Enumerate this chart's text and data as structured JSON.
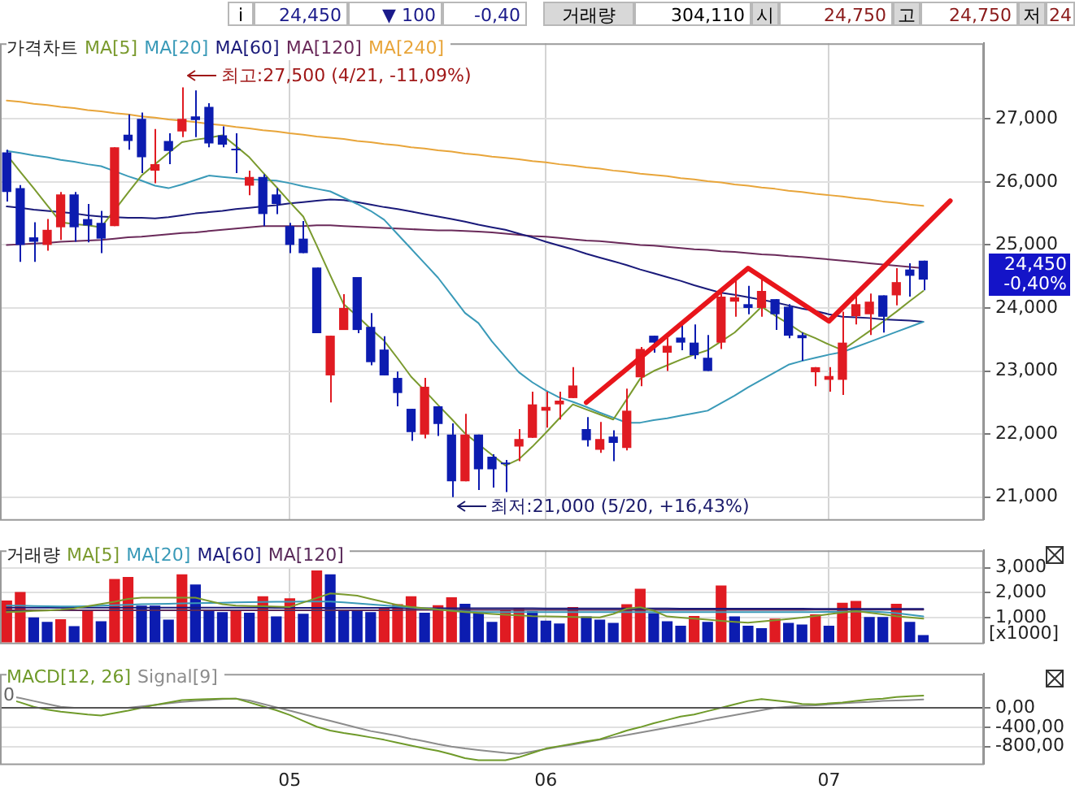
{
  "chart_data": [
    {
      "type": "candlestick",
      "title": "가격차트",
      "categories": [
        null,
        null,
        null,
        null,
        null,
        null,
        null,
        null,
        null,
        null,
        null,
        null,
        null,
        null,
        null,
        null,
        null,
        null,
        null,
        null,
        null,
        "05",
        null,
        null,
        null,
        null,
        null,
        null,
        null,
        null,
        null,
        null,
        null,
        null,
        null,
        null,
        null,
        null,
        null,
        null,
        "06",
        null,
        null,
        null,
        null,
        null,
        null,
        null,
        null,
        null,
        null,
        null,
        null,
        null,
        null,
        null,
        null,
        null,
        null,
        null,
        null,
        "07",
        null,
        null,
        null,
        null,
        null,
        null,
        null,
        null,
        null,
        null,
        null
      ],
      "ohlc": [
        [
          26470,
          26510,
          25690,
          25840
        ],
        [
          25900,
          25950,
          24730,
          25000
        ],
        [
          25120,
          25360,
          24730,
          25050
        ],
        [
          25000,
          25410,
          24910,
          25240
        ],
        [
          25280,
          25840,
          25080,
          25800
        ],
        [
          25800,
          25840,
          25050,
          25280
        ],
        [
          25410,
          25650,
          25040,
          25310
        ],
        [
          25350,
          25540,
          24870,
          25100
        ],
        [
          25300,
          26550,
          25300,
          26550
        ],
        [
          26750,
          27070,
          26510,
          26650
        ],
        [
          27000,
          27100,
          26140,
          26390
        ],
        [
          26180,
          26840,
          25980,
          26280
        ],
        [
          26650,
          26770,
          26280,
          26490
        ],
        [
          26800,
          27500,
          26710,
          27000
        ],
        [
          27040,
          27450,
          26710,
          26980
        ],
        [
          27190,
          27250,
          26550,
          26610
        ],
        [
          26740,
          26880,
          26550,
          26590
        ],
        [
          26520,
          26770,
          26140,
          26500
        ],
        [
          25940,
          26180,
          25790,
          26080
        ],
        [
          26080,
          26120,
          25300,
          25490
        ],
        [
          25800,
          25900,
          25490,
          25650
        ],
        [
          25300,
          25350,
          24870,
          25000
        ],
        [
          25100,
          25380,
          24870,
          24870
        ],
        [
          24640,
          24640,
          23600,
          23600
        ],
        [
          22930,
          23560,
          22500,
          23560
        ],
        [
          23650,
          24220,
          23650,
          24000
        ],
        [
          24490,
          24490,
          23600,
          23650
        ],
        [
          23700,
          23920,
          23090,
          23140
        ],
        [
          23340,
          23550,
          22930,
          22930
        ],
        [
          22890,
          22990,
          22440,
          22650
        ],
        [
          22400,
          22400,
          21890,
          22030
        ],
        [
          21990,
          22890,
          21930,
          22750
        ],
        [
          22440,
          22440,
          21970,
          22160
        ],
        [
          21990,
          22170,
          21000,
          21250
        ],
        [
          21250,
          22320,
          21250,
          21990
        ],
        [
          21990,
          21990,
          21110,
          21440
        ],
        [
          21640,
          21680,
          21150,
          21440
        ],
        [
          21540,
          21590,
          21080,
          21520
        ],
        [
          21800,
          22080,
          21570,
          21920
        ],
        [
          21940,
          22670,
          21940,
          22470
        ],
        [
          22370,
          22670,
          22100,
          22430
        ],
        [
          22470,
          22670,
          22230,
          22530
        ],
        [
          22570,
          23060,
          22570,
          22770
        ],
        [
          22080,
          22270,
          21800,
          21900
        ],
        [
          21750,
          22190,
          21700,
          21920
        ],
        [
          21960,
          22060,
          21570,
          21860
        ],
        [
          21780,
          22720,
          21740,
          22370
        ],
        [
          22900,
          23380,
          22760,
          23350
        ],
        [
          23560,
          23560,
          23290,
          23450
        ],
        [
          23290,
          23530,
          23000,
          23400
        ],
        [
          23530,
          23780,
          23330,
          23450
        ],
        [
          23450,
          23740,
          23190,
          23250
        ],
        [
          23210,
          23570,
          23000,
          23000
        ],
        [
          23450,
          24270,
          23350,
          24180
        ],
        [
          24100,
          24510,
          23860,
          24170
        ],
        [
          24060,
          24350,
          23900,
          24000
        ],
        [
          24000,
          24510,
          23860,
          24270
        ],
        [
          24140,
          24140,
          23650,
          23900
        ],
        [
          24020,
          24060,
          23520,
          23560
        ],
        [
          23570,
          23610,
          23160,
          23520
        ],
        [
          22980,
          23060,
          22760,
          23060
        ],
        [
          22860,
          23060,
          22670,
          22920
        ],
        [
          22860,
          23940,
          22620,
          23450
        ],
        [
          23870,
          24230,
          23740,
          24060
        ],
        [
          23900,
          24230,
          23570,
          24100
        ],
        [
          24200,
          24200,
          23610,
          23860
        ],
        [
          24200,
          24630,
          24040,
          24410
        ],
        [
          24610,
          24710,
          24180,
          24510
        ],
        [
          24750,
          24750,
          24280,
          24450
        ],
        null,
        null,
        null,
        null
      ],
      "colors": [
        "#0c1cb0",
        "#0c1cb0",
        "#0c1cb0",
        "#e01b22",
        "#e01b22",
        "#0c1cb0",
        "#0c1cb0",
        "#0c1cb0",
        "#e01b22",
        "#0c1cb0",
        "#0c1cb0",
        "#e01b22",
        "#0c1cb0",
        "#e01b22",
        "#0c1cb0",
        "#0c1cb0",
        "#0c1cb0",
        "#0c1cb0",
        "#e01b22",
        "#0c1cb0",
        "#0c1cb0",
        "#0c1cb0",
        "#0c1cb0",
        "#0c1cb0",
        "#e01b22",
        "#e01b22",
        "#0c1cb0",
        "#0c1cb0",
        "#0c1cb0",
        "#0c1cb0",
        "#0c1cb0",
        "#e01b22",
        "#0c1cb0",
        "#0c1cb0",
        "#e01b22",
        "#0c1cb0",
        "#0c1cb0",
        "#0c1cb0",
        "#e01b22",
        "#e01b22",
        "#e01b22",
        "#e01b22",
        "#e01b22",
        "#0c1cb0",
        "#e01b22",
        "#0c1cb0",
        "#e01b22",
        "#e01b22",
        "#0c1cb0",
        "#e01b22",
        "#0c1cb0",
        "#0c1cb0",
        "#0c1cb0",
        "#e01b22",
        "#e01b22",
        "#0c1cb0",
        "#e01b22",
        "#0c1cb0",
        "#0c1cb0",
        "#0c1cb0",
        "#e01b22",
        "#e01b22",
        "#e01b22",
        "#e01b22",
        "#e01b22",
        "#0c1cb0",
        "#e01b22",
        "#0c1cb0",
        "#0c1cb0",
        null,
        null,
        null,
        null
      ],
      "series": [
        {
          "type": "line",
          "name": "MA[5]",
          "color": "#7a9a2e",
          "values": [
            26430,
            26160,
            25900,
            25630,
            25360,
            25330,
            25310,
            25280,
            25550,
            25830,
            26100,
            26280,
            26460,
            26630,
            26670,
            26700,
            26740,
            26570,
            26390,
            26150,
            25920,
            25680,
            25450,
            24990,
            24520,
            24060,
            23870,
            23670,
            23480,
            23200,
            22910,
            22690,
            22460,
            22240,
            22010,
            21840,
            21670,
            21500,
            21600,
            21800,
            22020,
            22250,
            22470,
            22390,
            22310,
            22230,
            22550,
            22880,
            23000,
            23090,
            23180,
            23260,
            23330,
            23470,
            23610,
            23810,
            24020,
            23880,
            23750,
            23610,
            23520,
            23420,
            23330,
            23480,
            23630,
            23780,
            23940,
            24110,
            24270,
            null,
            null,
            null,
            null
          ]
        },
        {
          "type": "line",
          "name": "MA[20]",
          "color": "#3a9ab8",
          "values": [
            26490,
            26460,
            26420,
            26390,
            26350,
            26320,
            26280,
            26250,
            26170,
            26090,
            26020,
            25940,
            25900,
            25960,
            26030,
            26100,
            26080,
            26060,
            26040,
            26030,
            26020,
            25980,
            25930,
            25890,
            25850,
            25750,
            25650,
            25540,
            25400,
            25170,
            24940,
            24710,
            24480,
            24200,
            23920,
            23760,
            23470,
            23220,
            22980,
            22820,
            22690,
            22580,
            22510,
            22430,
            22340,
            22260,
            22180,
            22180,
            22220,
            22250,
            22290,
            22330,
            22370,
            22490,
            22610,
            22740,
            22860,
            22980,
            23100,
            23160,
            23210,
            23260,
            23300,
            23380,
            23460,
            23540,
            23620,
            23700,
            23780,
            null,
            null,
            null,
            null
          ]
        },
        {
          "type": "line",
          "name": "MA[60]",
          "color": "#1a1a7a",
          "values": [
            25610,
            25590,
            25560,
            25540,
            25520,
            25500,
            25470,
            25450,
            25440,
            25430,
            25430,
            25420,
            25440,
            25470,
            25500,
            25520,
            25540,
            25570,
            25590,
            25610,
            25630,
            25660,
            25680,
            25700,
            25720,
            25710,
            25680,
            25640,
            25600,
            25570,
            25530,
            25490,
            25450,
            25410,
            25370,
            25320,
            25280,
            25240,
            25180,
            25120,
            25050,
            24990,
            24930,
            24860,
            24800,
            24740,
            24680,
            24610,
            24550,
            24490,
            24430,
            24360,
            24300,
            24240,
            24210,
            24170,
            24130,
            24090,
            24040,
            23990,
            23950,
            23900,
            23860,
            23850,
            23840,
            23820,
            23810,
            23800,
            23780,
            null,
            null,
            null,
            null
          ]
        },
        {
          "type": "line",
          "name": "MA[120]",
          "color": "#6a2a5a",
          "values": [
            25000,
            25010,
            25020,
            25030,
            25050,
            25060,
            25070,
            25080,
            25100,
            25120,
            25130,
            25150,
            25170,
            25190,
            25200,
            25220,
            25240,
            25260,
            25280,
            25300,
            25300,
            25300,
            25300,
            25310,
            25310,
            25300,
            25290,
            25280,
            25270,
            25260,
            25250,
            25240,
            25230,
            25230,
            25220,
            25210,
            25200,
            25180,
            25160,
            25140,
            25130,
            25110,
            25090,
            25070,
            25060,
            25040,
            25020,
            25000,
            24990,
            24970,
            24950,
            24930,
            24920,
            24900,
            24890,
            24870,
            24850,
            24840,
            24820,
            24810,
            24790,
            24770,
            24750,
            24730,
            24710,
            24690,
            24670,
            24650,
            24630,
            null,
            null,
            null,
            null
          ]
        },
        {
          "type": "line",
          "name": "MA[240]",
          "color": "#e8a53a",
          "values": [
            27290,
            27270,
            27240,
            27220,
            27190,
            27170,
            27140,
            27120,
            27090,
            27070,
            27040,
            27020,
            26990,
            26970,
            26950,
            26920,
            26900,
            26870,
            26850,
            26820,
            26800,
            26770,
            26750,
            26720,
            26700,
            26680,
            26650,
            26630,
            26600,
            26580,
            26550,
            26530,
            26500,
            26480,
            26450,
            26430,
            26400,
            26380,
            26360,
            26330,
            26310,
            26280,
            26260,
            26230,
            26210,
            26180,
            26160,
            26130,
            26110,
            26090,
            26060,
            26040,
            26010,
            25990,
            25960,
            25940,
            25910,
            25890,
            25860,
            25840,
            25810,
            25790,
            25770,
            25740,
            25720,
            25690,
            25670,
            25640,
            25620,
            null,
            null,
            null,
            null
          ]
        },
        {
          "type": "line",
          "color": "#e8151b",
          "values": [
            null,
            null,
            null,
            null,
            null,
            null,
            null,
            null,
            null,
            null,
            null,
            null,
            null,
            null,
            null,
            null,
            null,
            null,
            null,
            null,
            null,
            null,
            null,
            null,
            null,
            null,
            null,
            null,
            null,
            null,
            null,
            null,
            null,
            null,
            null,
            null,
            null,
            null,
            null,
            null,
            null,
            null,
            null,
            22500,
            null,
            null,
            null,
            null,
            null,
            null,
            null,
            null,
            null,
            null,
            null,
            24630,
            null,
            null,
            null,
            null,
            null,
            23790,
            null,
            null,
            null,
            null,
            null,
            null,
            null,
            null,
            25700,
            null,
            null
          ]
        }
      ],
      "ylim": [
        20650,
        28200
      ],
      "yticks": [
        {
          "value": 21000,
          "label": "21,000"
        },
        {
          "value": 22000,
          "label": "22,000"
        },
        {
          "value": 23000,
          "label": "23,000"
        },
        {
          "value": 24000,
          "label": "24,000"
        },
        {
          "value": 25000,
          "label": "25,000"
        },
        {
          "value": 26000,
          "label": "26,000"
        },
        {
          "value": 27000,
          "label": "27,000"
        }
      ],
      "grid": true,
      "legend": "top left",
      "tick_labels": "y",
      "annotations": [
        "i",
        "24,450",
        "▼ 100",
        "-0,40",
        "거래량",
        "304,110",
        "시",
        "24,750",
        "고",
        "24,750",
        "저",
        "24",
        "최고:27,500 (4/21, -11,09%)",
        "최저:21,000 (5/20, +16,43%)",
        "24,450",
        "-0,40%"
      ]
    },
    {
      "type": "bar",
      "title": "거래량",
      "categories": [
        null,
        null,
        null,
        null,
        null,
        null,
        null,
        null,
        null,
        null,
        null,
        null,
        null,
        null,
        null,
        null,
        null,
        null,
        null,
        null,
        null,
        "05",
        null,
        null,
        null,
        null,
        null,
        null,
        null,
        null,
        null,
        null,
        null,
        null,
        null,
        null,
        null,
        null,
        null,
        null,
        "06",
        null,
        null,
        null,
        null,
        null,
        null,
        null,
        null,
        null,
        null,
        null,
        null,
        null,
        null,
        null,
        null,
        null,
        null,
        null,
        null,
        "07",
        null,
        null,
        null,
        null,
        null,
        null,
        null,
        null,
        null,
        null,
        null
      ],
      "series": [
        {
          "values": [
            1690,
            2030,
            1010,
            830,
            940,
            660,
            1280,
            860,
            2550,
            2630,
            1480,
            1480,
            920,
            2740,
            2330,
            1280,
            1220,
            1260,
            1200,
            1860,
            1050,
            1780,
            1160,
            2890,
            2740,
            1280,
            1330,
            1220,
            1430,
            1540,
            1860,
            1200,
            1500,
            1820,
            1560,
            1240,
            830,
            1330,
            1390,
            1260,
            880,
            770,
            1430,
            1050,
            920,
            790,
            1540,
            2160,
            1180,
            860,
            680,
            1070,
            830,
            2290,
            1050,
            680,
            580,
            960,
            790,
            730,
            1130,
            680,
            1600,
            1670,
            1030,
            1030,
            1560,
            830,
            300,
            null,
            null,
            null,
            null
          ],
          "colors": [
            "#e01b22",
            "#e01b22",
            "#0c1cb0",
            "#0c1cb0",
            "#e01b22",
            "#0c1cb0",
            "#e01b22",
            "#0c1cb0",
            "#e01b22",
            "#e01b22",
            "#0c1cb0",
            "#0c1cb0",
            "#0c1cb0",
            "#e01b22",
            "#0c1cb0",
            "#0c1cb0",
            "#0c1cb0",
            "#e01b22",
            "#0c1cb0",
            "#e01b22",
            "#0c1cb0",
            "#e01b22",
            "#0c1cb0",
            "#e01b22",
            "#0c1cb0",
            "#0c1cb0",
            "#0c1cb0",
            "#0c1cb0",
            "#e01b22",
            "#e01b22",
            "#e01b22",
            "#0c1cb0",
            "#e01b22",
            "#e01b22",
            "#0c1cb0",
            "#0c1cb0",
            "#0c1cb0",
            "#e01b22",
            "#e01b22",
            "#0c1cb0",
            "#0c1cb0",
            "#0c1cb0",
            "#e01b22",
            "#0c1cb0",
            "#0c1cb0",
            "#0c1cb0",
            "#e01b22",
            "#e01b22",
            "#0c1cb0",
            "#0c1cb0",
            "#0c1cb0",
            "#e01b22",
            "#0c1cb0",
            "#e01b22",
            "#0c1cb0",
            "#0c1cb0",
            "#0c1cb0",
            "#e01b22",
            "#0c1cb0",
            "#0c1cb0",
            "#e01b22",
            "#0c1cb0",
            "#e01b22",
            "#e01b22",
            "#0c1cb0",
            "#0c1cb0",
            "#e01b22",
            "#0c1cb0",
            "#0c1cb0",
            null,
            null,
            null,
            null
          ]
        },
        {
          "type": "line",
          "name": "MA[5]",
          "color": "#7a9a2e",
          "values": [
            1220,
            1240,
            1270,
            1290,
            1320,
            1370,
            1460,
            1550,
            1640,
            1750,
            1800,
            1800,
            1800,
            1800,
            1800,
            1670,
            1540,
            1480,
            1470,
            1460,
            1440,
            1430,
            1610,
            1790,
            1970,
            1930,
            1880,
            1750,
            1630,
            1510,
            1430,
            1380,
            1330,
            1270,
            1220,
            1190,
            1150,
            1120,
            1090,
            1060,
            1050,
            1040,
            1030,
            1020,
            1010,
            1150,
            1360,
            1420,
            1280,
            1050,
            1000,
            960,
            920,
            870,
            830,
            800,
            850,
            900,
            950,
            1000,
            1070,
            1140,
            1210,
            1260,
            1200,
            1130,
            1060,
            1010,
            960,
            null,
            null,
            null,
            null
          ]
        },
        {
          "type": "line",
          "name": "MA[20]",
          "color": "#3a9ab8",
          "values": [
            1480,
            1480,
            1470,
            1460,
            1450,
            1450,
            1460,
            1480,
            1500,
            1520,
            1540,
            1550,
            1560,
            1570,
            1580,
            1590,
            1600,
            1610,
            1620,
            1630,
            1640,
            1640,
            1650,
            1650,
            1650,
            1610,
            1570,
            1530,
            1490,
            1450,
            1410,
            1370,
            1330,
            1290,
            1250,
            1220,
            1220,
            1220,
            1220,
            1220,
            1220,
            1220,
            1220,
            1220,
            1220,
            1220,
            1220,
            1220,
            1220,
            1220,
            1220,
            1220,
            1220,
            1220,
            1220,
            1220,
            1220,
            1220,
            1220,
            1220,
            1220,
            1230,
            1240,
            1250,
            1250,
            1220,
            1180,
            1120,
            1050,
            null,
            null,
            null,
            null
          ]
        },
        {
          "type": "line",
          "name": "MA[60]",
          "color": "#1a1a7a",
          "values": [
            1400,
            1400,
            1400,
            1400,
            1400,
            1400,
            1400,
            1400,
            1400,
            1400,
            1400,
            1400,
            1400,
            1400,
            1400,
            1400,
            1400,
            1400,
            1400,
            1400,
            1390,
            1390,
            1390,
            1390,
            1390,
            1390,
            1390,
            1390,
            1390,
            1390,
            1380,
            1380,
            1380,
            1380,
            1380,
            1380,
            1380,
            1380,
            1380,
            1380,
            1370,
            1370,
            1370,
            1370,
            1370,
            1370,
            1370,
            1370,
            1370,
            1370,
            1360,
            1360,
            1360,
            1360,
            1360,
            1360,
            1360,
            1360,
            1360,
            1360,
            1350,
            1350,
            1350,
            1350,
            1350,
            1350,
            1350,
            1350,
            1350,
            null,
            null,
            null,
            null
          ]
        },
        {
          "type": "line",
          "name": "MA[120]",
          "color": "#5a2a5a",
          "values": [
            1300,
            1300,
            1300,
            1300,
            1300,
            1300,
            1300,
            1300,
            1300,
            1300,
            1300,
            1300,
            1300,
            1300,
            1300,
            1300,
            1300,
            1300,
            1300,
            1300,
            1300,
            1300,
            1300,
            1300,
            1300,
            1300,
            1300,
            1300,
            1300,
            1300,
            1310,
            1310,
            1310,
            1310,
            1310,
            1310,
            1310,
            1310,
            1310,
            1310,
            1310,
            1310,
            1310,
            1310,
            1310,
            1310,
            1310,
            1310,
            1310,
            1310,
            1310,
            1310,
            1310,
            1310,
            1310,
            1310,
            1310,
            1310,
            1310,
            1310,
            1320,
            1320,
            1320,
            1320,
            1320,
            1320,
            1320,
            1320,
            1320,
            null,
            null,
            null,
            null
          ]
        }
      ],
      "ylim": [
        0,
        3700
      ],
      "yticks": [
        {
          "value": 1000,
          "label": "1,000"
        },
        {
          "value": 2000,
          "label": "2,000"
        },
        {
          "value": 3000,
          "label": "3,000"
        }
      ],
      "ylabel": "[x1000]",
      "grid": true,
      "legend": "top left",
      "tick_labels": "y"
    },
    {
      "type": "line",
      "categories": [
        null,
        null,
        null,
        null,
        null,
        null,
        null,
        null,
        null,
        null,
        null,
        null,
        null,
        null,
        null,
        null,
        null,
        null,
        null,
        null,
        null,
        "05",
        null,
        null,
        null,
        null,
        null,
        null,
        null,
        null,
        null,
        null,
        null,
        null,
        null,
        null,
        null,
        null,
        null,
        null,
        "06",
        null,
        null,
        null,
        null,
        null,
        null,
        null,
        null,
        null,
        null,
        null,
        null,
        null,
        null,
        null,
        null,
        null,
        null,
        null,
        null,
        "07",
        null,
        null,
        null,
        null,
        null,
        null,
        null,
        null,
        null,
        null,
        null
      ],
      "series": [
        {
          "name": "MACD[12, 26]",
          "color": "#6f9a2a",
          "values": [
            190,
            110,
            20,
            -40,
            -80,
            -110,
            -140,
            -160,
            -110,
            -60,
            0,
            60,
            110,
            160,
            170,
            180,
            190,
            190,
            110,
            30,
            -50,
            -150,
            -270,
            -390,
            -470,
            -520,
            -560,
            -610,
            -660,
            -720,
            -780,
            -840,
            -890,
            -960,
            -1040,
            -1080,
            -1080,
            -1080,
            -1020,
            -930,
            -840,
            -790,
            -740,
            -690,
            -650,
            -560,
            -470,
            -400,
            -320,
            -250,
            -180,
            -140,
            -70,
            0,
            70,
            140,
            180,
            150,
            120,
            80,
            70,
            90,
            110,
            140,
            170,
            190,
            220,
            240,
            250,
            null,
            null,
            null,
            null
          ]
        },
        {
          "name": "Signal[9]",
          "color": "#8c8c8c",
          "values": [
            250,
            200,
            140,
            80,
            20,
            0,
            0,
            0,
            0,
            0,
            30,
            60,
            90,
            120,
            140,
            160,
            180,
            190,
            150,
            80,
            10,
            -60,
            -130,
            -200,
            -270,
            -340,
            -410,
            -480,
            -530,
            -580,
            -640,
            -690,
            -750,
            -800,
            -840,
            -870,
            -900,
            -930,
            -950,
            -900,
            -850,
            -800,
            -760,
            -710,
            -660,
            -610,
            -560,
            -510,
            -460,
            -410,
            -360,
            -310,
            -250,
            -200,
            -150,
            -100,
            -50,
            0,
            20,
            40,
            50,
            70,
            90,
            110,
            120,
            140,
            150,
            160,
            170,
            null,
            null,
            null,
            null
          ]
        }
      ],
      "ylim": [
        -1150,
        700
      ],
      "yticks": [
        {
          "value": -800,
          "label": "-800,00"
        },
        {
          "value": -400,
          "label": "-400,00"
        },
        {
          "value": 0,
          "label": "0,00"
        }
      ],
      "ref_lines": [
        {
          "axis": "y",
          "value": 0,
          "label": "0",
          "color": "#555555"
        }
      ],
      "grid": "y",
      "legend": "top left"
    }
  ]
}
